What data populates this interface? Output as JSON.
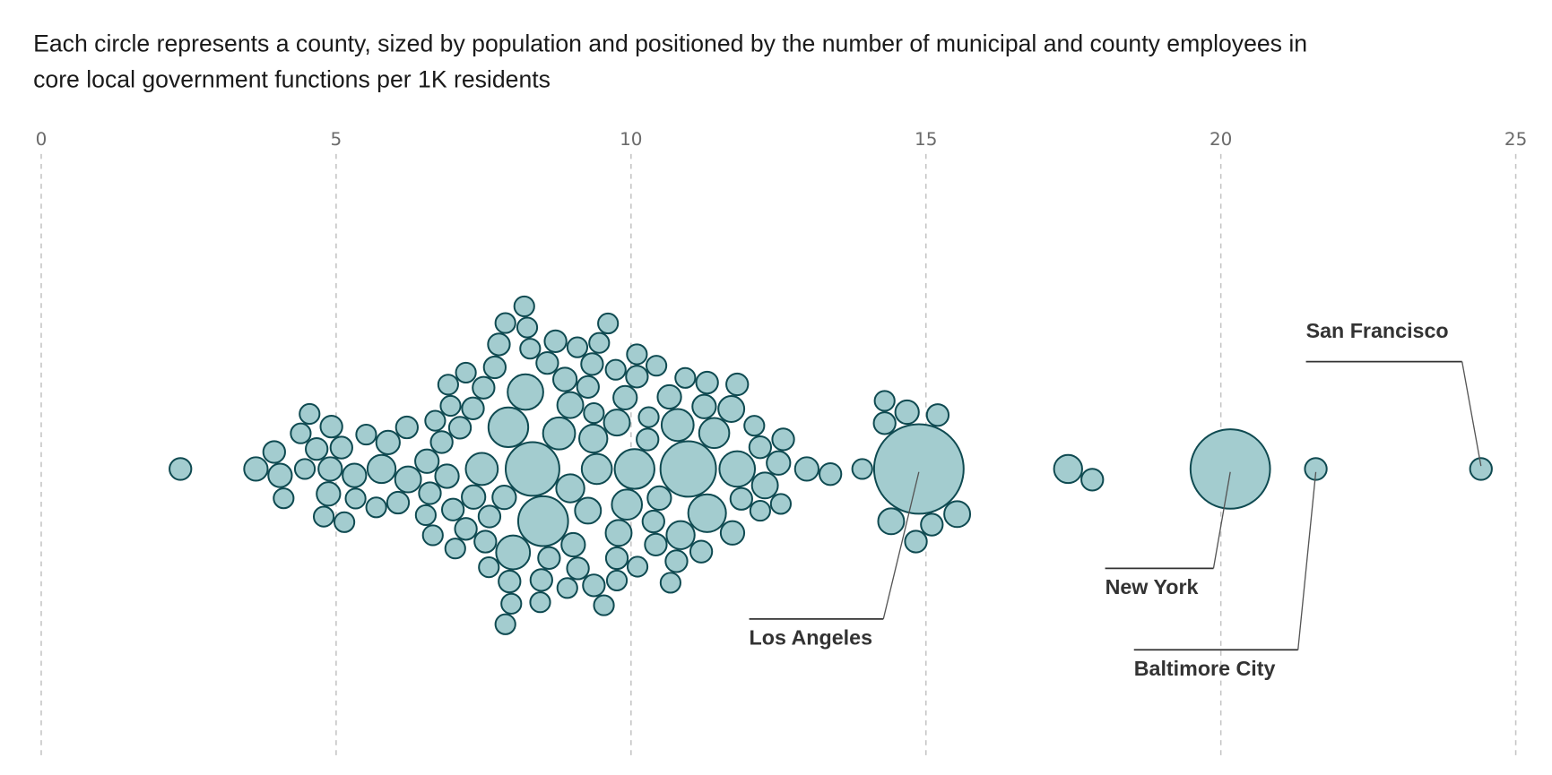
{
  "chart_data": {
    "type": "beeswarm",
    "title": "Each circle represents a county, sized by population and positioned by the number of municipal and county employees in",
    "title_line2": "core local government functions per 1K residents",
    "xlim": [
      0,
      25
    ],
    "x_ticks": [
      0,
      5,
      10,
      15,
      20,
      25
    ],
    "grid": true,
    "colors": {
      "fill": "#a3cccf",
      "stroke": "#0f4a51"
    },
    "size_note": "relative_size is relative circle area (population), unitless",
    "counties": [
      [
        2.36,
        1.2
      ],
      [
        3.64,
        1.4
      ],
      [
        4.05,
        1.4
      ],
      [
        3.95,
        1.2
      ],
      [
        4.11,
        1
      ],
      [
        4.47,
        1
      ],
      [
        4.4,
        1
      ],
      [
        4.67,
        1.2
      ],
      [
        4.9,
        1.4
      ],
      [
        4.87,
        1.4
      ],
      [
        4.79,
        1
      ],
      [
        5.09,
        1.2
      ],
      [
        5.33,
        1
      ],
      [
        5.14,
        1
      ],
      [
        4.55,
        1
      ],
      [
        4.92,
        1.2
      ],
      [
        5.31,
        1.4
      ],
      [
        5.51,
        1
      ],
      [
        5.68,
        1
      ],
      [
        5.77,
        2
      ],
      [
        6.05,
        1.2
      ],
      [
        5.88,
        1.4
      ],
      [
        6.2,
        1.2
      ],
      [
        6.22,
        1.7
      ],
      [
        6.54,
        1.4
      ],
      [
        6.59,
        1.2
      ],
      [
        6.68,
        1
      ],
      [
        6.52,
        1
      ],
      [
        6.64,
        1
      ],
      [
        6.79,
        1.2
      ],
      [
        6.88,
        1.4
      ],
      [
        6.94,
        1
      ],
      [
        6.98,
        1.2
      ],
      [
        7.02,
        1
      ],
      [
        6.9,
        1
      ],
      [
        7.1,
        1.2
      ],
      [
        7.2,
        1.2
      ],
      [
        7.2,
        1
      ],
      [
        7.32,
        1.2
      ],
      [
        7.47,
        2.6
      ],
      [
        7.33,
        1.4
      ],
      [
        7.53,
        1.2
      ],
      [
        7.6,
        1.2
      ],
      [
        7.5,
        1.2
      ],
      [
        7.59,
        1
      ],
      [
        7.69,
        1.2
      ],
      [
        7.85,
        1.4
      ],
      [
        7.97,
        1
      ],
      [
        7.87,
        1
      ],
      [
        7.92,
        4
      ],
      [
        7.94,
        1.2
      ],
      [
        7.87,
        1
      ],
      [
        8.0,
        2.9
      ],
      [
        8.33,
        7.3
      ],
      [
        8.29,
        1
      ],
      [
        8.46,
        1
      ],
      [
        8.51,
        6.3
      ],
      [
        8.24,
        1
      ],
      [
        8.19,
        1
      ],
      [
        8.61,
        1.2
      ],
      [
        8.58,
        1.2
      ],
      [
        8.78,
        2.6
      ],
      [
        8.48,
        1.2
      ],
      [
        8.21,
        3.2
      ],
      [
        7.76,
        1.2
      ],
      [
        8.72,
        1.2
      ],
      [
        8.92,
        1
      ],
      [
        8.97,
        2
      ],
      [
        9.02,
        1.4
      ],
      [
        8.97,
        1.7
      ],
      [
        9.09,
        1
      ],
      [
        8.88,
        1.4
      ],
      [
        9.1,
        1.2
      ],
      [
        9.27,
        1.7
      ],
      [
        9.27,
        1.2
      ],
      [
        9.34,
        1.2
      ],
      [
        9.42,
        2.3
      ],
      [
        9.37,
        1.2
      ],
      [
        9.37,
        1
      ],
      [
        9.46,
        1
      ],
      [
        9.36,
        2
      ],
      [
        9.54,
        1
      ],
      [
        9.61,
        1
      ],
      [
        9.76,
        1.7
      ],
      [
        9.76,
        1.2
      ],
      [
        9.74,
        1
      ],
      [
        9.76,
        1
      ],
      [
        9.79,
        1.7
      ],
      [
        9.9,
        1.4
      ],
      [
        9.93,
        2.3
      ],
      [
        10.06,
        4
      ],
      [
        10.11,
        1
      ],
      [
        10.1,
        1.2
      ],
      [
        10.1,
        1
      ],
      [
        10.28,
        1.2
      ],
      [
        10.3,
        1
      ],
      [
        10.38,
        1.2
      ],
      [
        10.43,
        1
      ],
      [
        10.48,
        1.4
      ],
      [
        10.42,
        1.2
      ],
      [
        10.65,
        1.4
      ],
      [
        10.67,
        1
      ],
      [
        10.77,
        1.2
      ],
      [
        10.79,
        2.6
      ],
      [
        10.84,
        2
      ],
      [
        10.97,
        7.8
      ],
      [
        10.92,
        1
      ],
      [
        11.19,
        1.2
      ],
      [
        11.24,
        1.4
      ],
      [
        11.29,
        3.6
      ],
      [
        11.29,
        1.2
      ],
      [
        11.41,
        2.3
      ],
      [
        11.7,
        1.7
      ],
      [
        11.8,
        3.2
      ],
      [
        11.87,
        1.2
      ],
      [
        11.8,
        1.2
      ],
      [
        11.72,
        1.4
      ],
      [
        12.09,
        1
      ],
      [
        12.19,
        1.2
      ],
      [
        12.19,
        1
      ],
      [
        12.27,
        1.7
      ],
      [
        12.5,
        1.4
      ],
      [
        12.58,
        1.2
      ],
      [
        12.54,
        1
      ],
      [
        12.98,
        1.4
      ],
      [
        13.38,
        1.2
      ],
      [
        13.92,
        1
      ],
      [
        14.3,
        1.2
      ],
      [
        14.3,
        1
      ],
      [
        14.68,
        1.4
      ],
      [
        15.1,
        1.2
      ],
      [
        15.53,
        1.7
      ],
      [
        14.88,
        20.3
      ],
      [
        14.41,
        1.7
      ],
      [
        14.83,
        1.2
      ],
      [
        15.2,
        1.2
      ],
      [
        17.41,
        2
      ],
      [
        17.82,
        1.2
      ],
      [
        20.16,
        16
      ],
      [
        21.61,
        1.2
      ],
      [
        24.41,
        1.2
      ]
    ],
    "annotations": [
      {
        "label": "San Francisco",
        "x": 24.41
      },
      {
        "label": "New York",
        "x": 20.16
      },
      {
        "label": "Los Angeles",
        "x": 14.88
      },
      {
        "label": "Baltimore City",
        "x": 21.61
      }
    ]
  }
}
